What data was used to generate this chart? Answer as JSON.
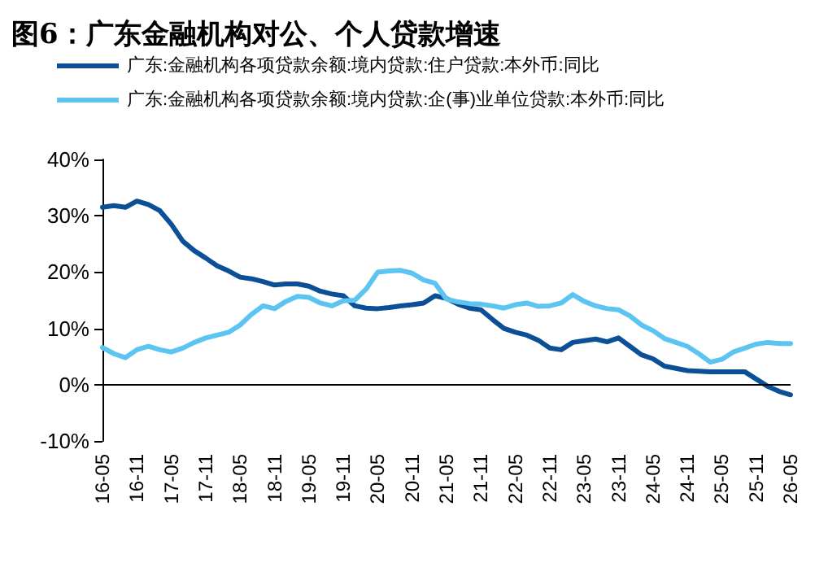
{
  "chart_data": {
    "type": "line",
    "title": "图6：广东金融机构对公、个人贷款增速",
    "categories": [
      "16-05",
      null,
      null,
      "16-11",
      null,
      null,
      "17-05",
      null,
      null,
      "17-11",
      null,
      null,
      "18-05",
      null,
      null,
      "18-11",
      null,
      null,
      "19-05",
      null,
      null,
      "19-11",
      null,
      null,
      "20-05",
      null,
      null,
      "20-11",
      null,
      null,
      "21-05",
      null,
      null,
      "21-11",
      null,
      null,
      "22-05",
      null,
      null,
      "22-11",
      null,
      null,
      "23-05",
      null,
      null,
      "23-11",
      null,
      null,
      "24-05",
      null,
      null,
      "24-11",
      null,
      null,
      "25-05",
      null,
      null,
      "25-11",
      null,
      null,
      "26-05"
    ],
    "series": [
      {
        "name": "广东:金融机构各项贷款余额:境内贷款:住户贷款:本外币:同比",
        "color": "#0b4f96",
        "values": [
          31.5,
          31.8,
          31.5,
          32.6,
          32.0,
          30.9,
          28.5,
          25.5,
          23.8,
          22.5,
          21.1,
          20.2,
          19.1,
          18.8,
          18.3,
          17.7,
          17.9,
          17.9,
          17.5,
          16.6,
          16.1,
          15.8,
          14.0,
          13.6,
          13.5,
          13.7,
          14.0,
          14.2,
          14.5,
          15.8,
          15.3,
          14.3,
          13.6,
          13.3,
          11.6,
          10.0,
          9.3,
          8.8,
          7.9,
          6.5,
          6.2,
          7.5,
          7.8,
          8.1,
          7.6,
          8.3,
          6.8,
          5.3,
          4.6,
          3.3,
          2.9,
          2.5,
          2.4,
          2.3,
          2.3,
          2.3,
          2.3,
          1.0,
          -0.3,
          -1.2,
          -1.8
        ]
      },
      {
        "name": "广东:金融机构各项贷款余额:境内贷款:企(事)业单位贷款:本外币:同比",
        "color": "#5bc4f0",
        "values": [
          6.6,
          5.5,
          4.8,
          6.2,
          6.8,
          6.2,
          5.8,
          6.5,
          7.5,
          8.3,
          8.8,
          9.3,
          10.6,
          12.5,
          14.0,
          13.5,
          14.8,
          15.7,
          15.5,
          14.5,
          14.0,
          14.9,
          15.0,
          17.0,
          20.0,
          20.2,
          20.3,
          19.8,
          18.6,
          18.0,
          15.2,
          14.7,
          14.4,
          14.3,
          14.0,
          13.6,
          14.2,
          14.5,
          13.9,
          14.0,
          14.5,
          16.0,
          14.8,
          14.0,
          13.5,
          13.3,
          12.2,
          10.6,
          9.6,
          8.2,
          7.5,
          6.8,
          5.5,
          4.0,
          4.5,
          5.8,
          6.5,
          7.2,
          7.5,
          7.3,
          7.3
        ]
      }
    ],
    "ylim": [
      -10,
      40
    ],
    "yticks": [
      {
        "value": -10,
        "label": "-10%"
      },
      {
        "value": 0,
        "label": "0%"
      },
      {
        "value": 10,
        "label": "10%"
      },
      {
        "value": 20,
        "label": "20%"
      },
      {
        "value": 30,
        "label": "30%"
      },
      {
        "value": 40,
        "label": "40%"
      }
    ],
    "ref_lines": [
      {
        "axis": "y",
        "value": 0,
        "color": "#000000"
      }
    ],
    "grid": false,
    "legend": "top",
    "marker": "none",
    "line_style": "solid"
  }
}
